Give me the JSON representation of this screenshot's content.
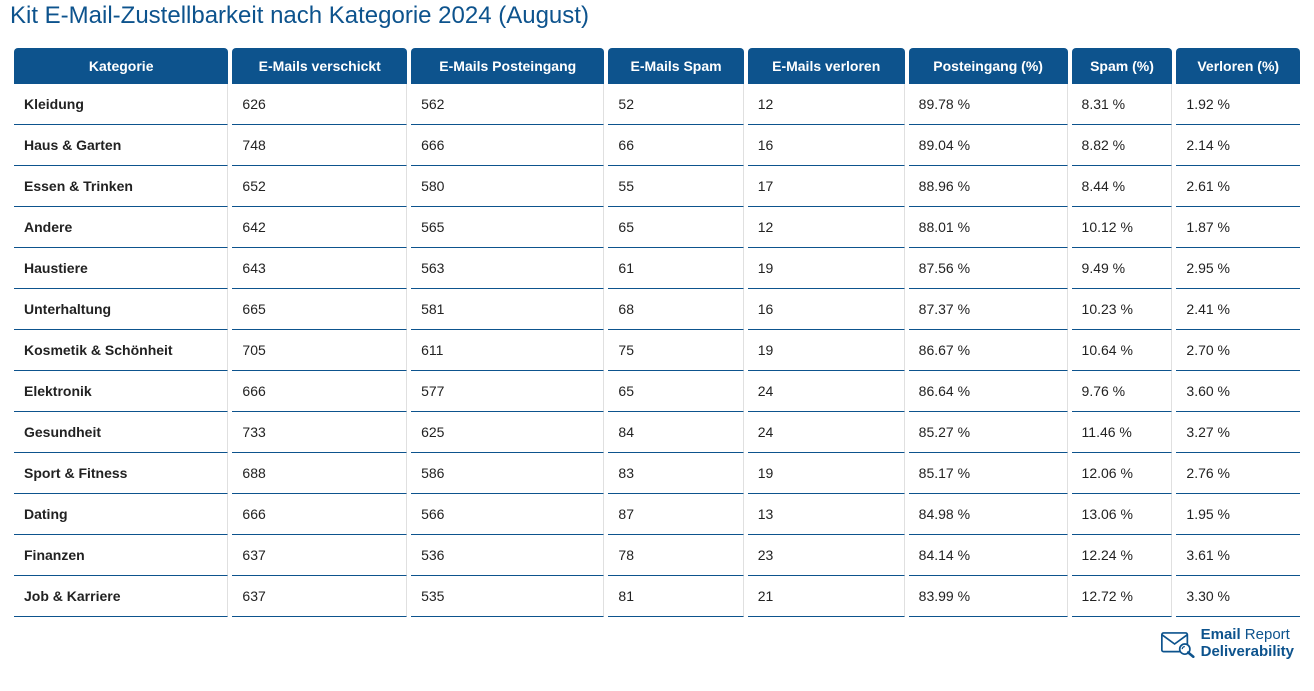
{
  "title": "Kit E-Mail-Zustellbarkeit nach Kategorie 2024 (August)",
  "colors": {
    "header_bg": "#0d538d",
    "header_text": "#ffffff",
    "title_color": "#0d538d",
    "row_border": "#0d538d",
    "cell_divider": "#e0e0e0",
    "text": "#222222",
    "bg": "#ffffff"
  },
  "table": {
    "columns": [
      "Kategorie",
      "E-Mails verschickt",
      "E-Mails Posteingang",
      "E-Mails Spam",
      "E-Mails verloren",
      "Posteingang (%)",
      "Spam (%)",
      "Verloren (%)"
    ],
    "rows": [
      [
        "Kleidung",
        "626",
        "562",
        "52",
        "12",
        "89.78 %",
        "8.31 %",
        "1.92 %"
      ],
      [
        "Haus & Garten",
        "748",
        "666",
        "66",
        "16",
        "89.04 %",
        "8.82 %",
        "2.14 %"
      ],
      [
        "Essen & Trinken",
        "652",
        "580",
        "55",
        "17",
        "88.96 %",
        "8.44 %",
        "2.61 %"
      ],
      [
        "Andere",
        "642",
        "565",
        "65",
        "12",
        "88.01 %",
        "10.12 %",
        "1.87 %"
      ],
      [
        "Haustiere",
        "643",
        "563",
        "61",
        "19",
        "87.56 %",
        "9.49 %",
        "2.95 %"
      ],
      [
        "Unterhaltung",
        "665",
        "581",
        "68",
        "16",
        "87.37 %",
        "10.23 %",
        "2.41 %"
      ],
      [
        "Kosmetik & Schönheit",
        "705",
        "611",
        "75",
        "19",
        "86.67 %",
        "10.64 %",
        "2.70 %"
      ],
      [
        "Elektronik",
        "666",
        "577",
        "65",
        "24",
        "86.64 %",
        "9.76 %",
        "3.60 %"
      ],
      [
        "Gesundheit",
        "733",
        "625",
        "84",
        "24",
        "85.27 %",
        "11.46 %",
        "3.27 %"
      ],
      [
        "Sport & Fitness",
        "688",
        "586",
        "83",
        "19",
        "85.17 %",
        "12.06 %",
        "2.76 %"
      ],
      [
        "Dating",
        "666",
        "566",
        "87",
        "13",
        "84.98 %",
        "13.06 %",
        "1.95 %"
      ],
      [
        "Finanzen",
        "637",
        "536",
        "78",
        "23",
        "84.14 %",
        "12.24 %",
        "3.61 %"
      ],
      [
        "Job & Karriere",
        "637",
        "535",
        "81",
        "21",
        "83.99 %",
        "12.72 %",
        "3.30 %"
      ]
    ]
  },
  "footer": {
    "logo_line1_bold": "Email",
    "logo_line1_thin": " Report",
    "logo_line2": "Deliverability"
  }
}
